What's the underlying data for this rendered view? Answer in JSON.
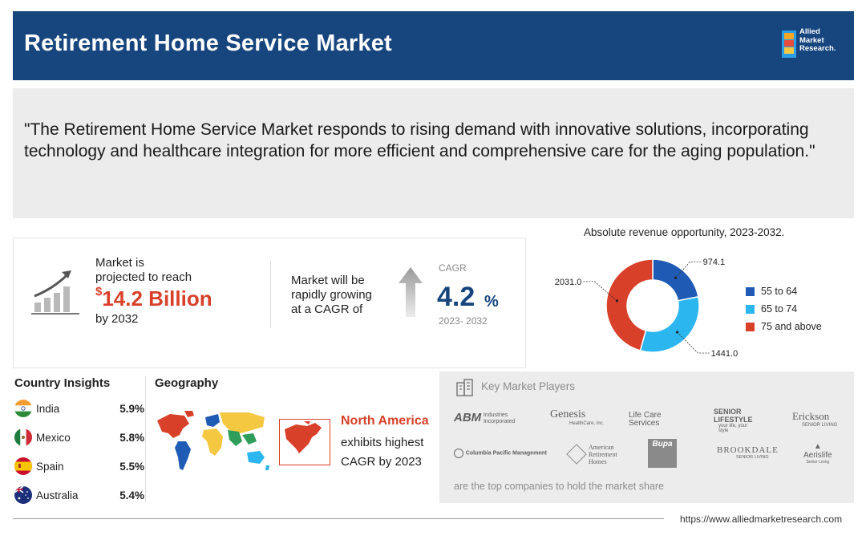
{
  "header": {
    "title": "Retirement Home Service Market",
    "logo_lines": [
      "Allied",
      "Market",
      "Research."
    ]
  },
  "quote": "\"The Retirement Home Service Market responds to rising demand with innovative solutions, incorporating technology and healthcare integration for more efficient and comprehensive care for the aging population.\"",
  "stats": {
    "reach_line1": "Market is",
    "reach_line2": "projected to reach",
    "currency": "$",
    "value": "14.2 Billion",
    "by_year": "by 2032",
    "cagr_line1": "Market will be",
    "cagr_line2": "rapidly growing",
    "cagr_line3": "at a CAGR of",
    "cagr_label": "CAGR",
    "cagr_value": "4.2",
    "cagr_unit": "%",
    "cagr_period": "2023- 2032"
  },
  "chart_data": {
    "type": "pie",
    "variant": "donut",
    "title": "Absolute revenue opportunity, 2023-2032.",
    "categories": [
      "55 to 64",
      "65 to 74",
      "75 and above"
    ],
    "values": [
      974.1,
      1441.0,
      2031.0
    ],
    "labels": [
      "974.1",
      "1441.0",
      "2031.0"
    ],
    "colors": [
      "#1f5bb5",
      "#2cb6f0",
      "#d9402a"
    ],
    "legend": "right"
  },
  "countries": {
    "title": "Country Insights",
    "items": [
      {
        "name": "India",
        "value": "5.9%"
      },
      {
        "name": "Mexico",
        "value": "5.8%"
      },
      {
        "name": "Spain",
        "value": "5.5%"
      },
      {
        "name": "Australia",
        "value": "5.4%"
      }
    ]
  },
  "geography": {
    "title": "Geography",
    "region": "North America",
    "line1": "exhibits highest",
    "line2": "CAGR by 2023"
  },
  "players": {
    "title": "Key Market Players",
    "footnote": "are the top companies to hold the market share",
    "row1": [
      "ABM",
      "Genesis",
      "Life Care Services",
      "SENIOR LIFESTYLE",
      "Erickson"
    ],
    "row2": [
      "Columbia Pacific Management",
      "American Retirement Homes",
      "Bupa",
      "BROOKDALE",
      "Aerislife"
    ],
    "row1_sub": [
      "Industries Incorporated",
      "HealthCare, Inc.",
      "",
      "your life, your style",
      "SENIOR LIVING"
    ],
    "row2_sub": [
      "",
      "",
      "",
      "SENIOR LIVING",
      "Senior Living"
    ]
  },
  "footer": {
    "url": "https://www.alliedmarketresearch.com"
  }
}
